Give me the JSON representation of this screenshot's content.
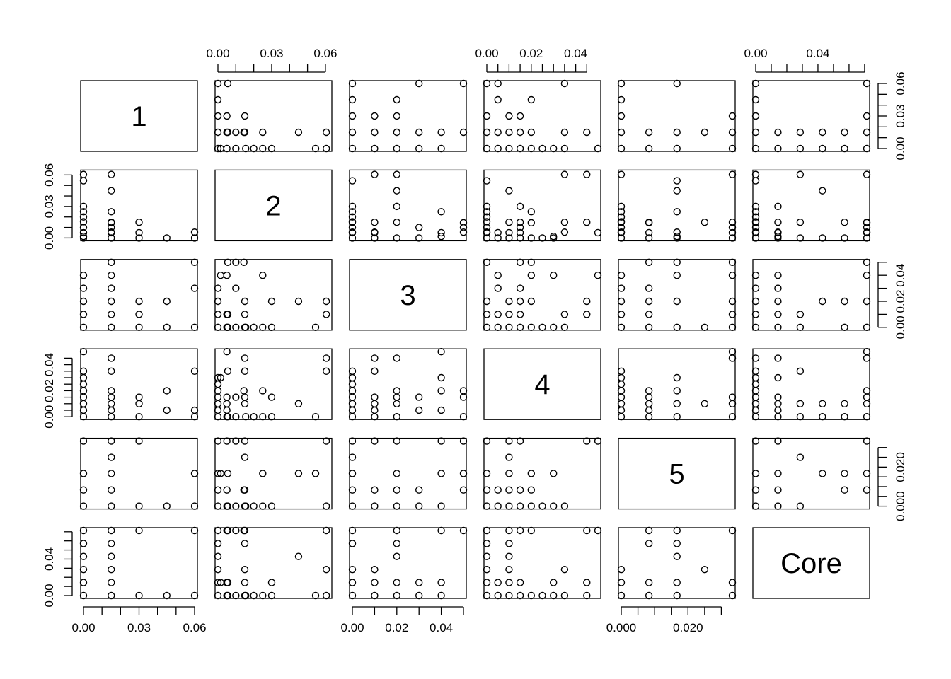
{
  "chart_data": {
    "type": "scatter-matrix",
    "variables": [
      {
        "label": "1",
        "range": [
          0,
          0.06
        ],
        "ticks": [
          0,
          0.01,
          0.02,
          0.03,
          0.04,
          0.05,
          0.06
        ],
        "tick_labels": [
          "0.00",
          "0.03",
          "0.06"
        ],
        "labeled_ticks": [
          0,
          0.03,
          0.06
        ]
      },
      {
        "label": "2",
        "range": [
          0,
          0.062
        ],
        "ticks": [
          0,
          0.01,
          0.02,
          0.03,
          0.04,
          0.05,
          0.06
        ],
        "tick_labels": [
          "0.00",
          "0.03",
          "0.06"
        ],
        "labeled_ticks": [
          0,
          0.03,
          0.06
        ]
      },
      {
        "label": "3",
        "range": [
          0,
          0.05
        ],
        "ticks": [
          0,
          0.01,
          0.02,
          0.03,
          0.04,
          0.05
        ],
        "tick_labels": [
          "0.00",
          "0.02",
          "0.04"
        ],
        "labeled_ticks": [
          0,
          0.02,
          0.04
        ]
      },
      {
        "label": "4",
        "range": [
          0,
          0.05
        ],
        "ticks": [
          0,
          0.005,
          0.01,
          0.015,
          0.02,
          0.025,
          0.03,
          0.035,
          0.04,
          0.045
        ],
        "tick_labels": [
          "0.00",
          "0.02",
          "0.04"
        ],
        "labeled_ticks": [
          0,
          0.02,
          0.04
        ]
      },
      {
        "label": "5",
        "range": [
          0,
          0.0333
        ],
        "ticks": [
          0,
          0.005,
          0.01,
          0.015,
          0.02,
          0.025,
          0.03
        ],
        "tick_labels": [
          "0.000",
          "0.020"
        ],
        "labeled_ticks": [
          0,
          0.02
        ]
      },
      {
        "label": "Core",
        "range": [
          0,
          0.0714
        ],
        "ticks": [
          0,
          0.01,
          0.02,
          0.03,
          0.04,
          0.05,
          0.06,
          0.07
        ],
        "tick_labels": [
          "0.00",
          "0.04"
        ],
        "labeled_ticks": [
          0,
          0.04
        ]
      }
    ],
    "axes": {
      "top": [
        1,
        3,
        5
      ],
      "bottom": [
        0,
        2,
        4
      ],
      "left": [
        1,
        3,
        5
      ],
      "right": [
        0,
        2,
        4
      ]
    },
    "observations": [
      [
        0,
        0,
        0,
        0,
        0,
        0
      ],
      [
        0,
        0.01,
        0,
        0,
        0,
        0
      ],
      [
        0,
        0,
        0.01,
        0,
        0,
        0
      ],
      [
        0,
        0,
        0,
        0.005,
        0,
        0
      ],
      [
        0,
        0,
        0,
        0,
        0.0083,
        0
      ],
      [
        0,
        0,
        0,
        0,
        0,
        0.0143
      ],
      [
        0.015,
        0,
        0,
        0,
        0,
        0
      ],
      [
        0,
        0.0155,
        0,
        0,
        0,
        0
      ],
      [
        0,
        0,
        0.02,
        0,
        0,
        0
      ],
      [
        0,
        0,
        0,
        0.01,
        0,
        0
      ],
      [
        0,
        0,
        0,
        0,
        0.0167,
        0
      ],
      [
        0,
        0,
        0,
        0,
        0,
        0.0286
      ],
      [
        0,
        0,
        0,
        0.015,
        0,
        0
      ],
      [
        0,
        0,
        0,
        0.02,
        0,
        0
      ],
      [
        0,
        0,
        0,
        0.025,
        0,
        0
      ],
      [
        0,
        0,
        0,
        0.03,
        0,
        0
      ],
      [
        0,
        0.005,
        0,
        0,
        0,
        0
      ],
      [
        0,
        0.02,
        0,
        0,
        0,
        0
      ],
      [
        0,
        0.025,
        0,
        0,
        0,
        0
      ],
      [
        0,
        0.03,
        0,
        0,
        0,
        0
      ],
      [
        0.015,
        0.005,
        0.01,
        0.005,
        0.0083,
        0.0143
      ],
      [
        0.015,
        0.005,
        0.01,
        0.01,
        0.0083,
        0.0143
      ],
      [
        0.015,
        0.015,
        0.01,
        0.015,
        0.0083,
        0
      ],
      [
        0.015,
        0.01,
        0.03,
        0.015,
        0,
        0
      ],
      [
        0.015,
        0.005,
        0.04,
        0.005,
        0,
        0
      ],
      [
        0.015,
        0.045,
        0.02,
        0.01,
        0.0167,
        0.0429
      ],
      [
        0.03,
        0.015,
        0.01,
        0.01,
        0,
        0
      ],
      [
        0.03,
        0.005,
        0,
        0.015,
        0,
        0
      ],
      [
        0.045,
        0,
        0,
        0.005,
        0,
        0
      ],
      [
        0.045,
        0,
        0.02,
        0.02,
        0,
        0
      ],
      [
        0.015,
        0.015,
        0.01,
        0.035,
        0,
        0
      ],
      [
        0,
        0.0545,
        0,
        0,
        0.0167,
        0
      ],
      [
        0.06,
        0,
        0.03,
        0.005,
        0,
        0
      ],
      [
        0.06,
        0.0055,
        0,
        0.035,
        0,
        0
      ],
      [
        0,
        0,
        0.02,
        0,
        0.0167,
        0.0429
      ],
      [
        0.015,
        0.025,
        0.04,
        0.02,
        0.0167,
        0
      ],
      [
        0,
        0.03,
        0.02,
        0.015,
        0,
        0.0143
      ],
      [
        0,
        0.0015,
        0.04,
        0.03,
        0.0167,
        0.0143
      ],
      [
        0,
        0,
        0.03,
        0.005,
        0.0083,
        0.0143
      ],
      [
        0.015,
        0.015,
        0.02,
        0.01,
        0.0083,
        0.0571
      ],
      [
        0.015,
        0.0145,
        0.05,
        0.02,
        0.0083,
        0.0714
      ],
      [
        0.015,
        0.015,
        0,
        0.01,
        0.025,
        0.0286
      ],
      [
        0.015,
        0.0055,
        0.01,
        0,
        0,
        0.0143
      ],
      [
        0,
        0.005,
        0.04,
        0.05,
        0.0333,
        0.0714
      ],
      [
        0.03,
        0,
        0,
        0,
        0.0333,
        0.0714
      ],
      [
        0.06,
        0.0055,
        0.05,
        0,
        0.0167,
        0.0714
      ],
      [
        0.015,
        0.0605,
        0.01,
        0.045,
        0.0333,
        0
      ],
      [
        0.015,
        0,
        0.01,
        0.015,
        0.0333,
        0.0143
      ],
      [
        0,
        0.0605,
        0.01,
        0.035,
        0,
        0.0286
      ],
      [
        0.015,
        0.015,
        0.01,
        0.045,
        0.0333,
        0.0143
      ],
      [
        0,
        0,
        0,
        0,
        0.0167,
        0.0571
      ],
      [
        0.015,
        0.01,
        0.05,
        0.015,
        0.0333,
        0.0714
      ],
      [
        0.015,
        0.0605,
        0.02,
        0.045,
        0.0333,
        0.0714
      ],
      [
        0.03,
        0.015,
        0.02,
        0.01,
        0.0333,
        0.0714
      ]
    ]
  }
}
